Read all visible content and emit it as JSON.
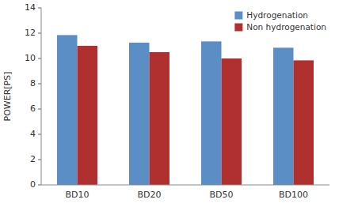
{
  "chart_data": {
    "type": "bar",
    "ylabel": "POWER[PS]",
    "categories": [
      "BD10",
      "BD20",
      "BD50",
      "BD100"
    ],
    "series": [
      {
        "name": "Hydrogenation",
        "color": "#5b8ec4",
        "values": [
          11.85,
          11.25,
          11.35,
          10.85
        ]
      },
      {
        "name": "Non hydrogenation",
        "color": "#b03030",
        "values": [
          11.0,
          10.5,
          10.0,
          9.85
        ]
      }
    ],
    "ylim": [
      0,
      14
    ],
    "yticks": [
      0,
      2,
      4,
      6,
      8,
      10,
      12,
      14
    ],
    "grid": false,
    "legend": "upper right"
  }
}
